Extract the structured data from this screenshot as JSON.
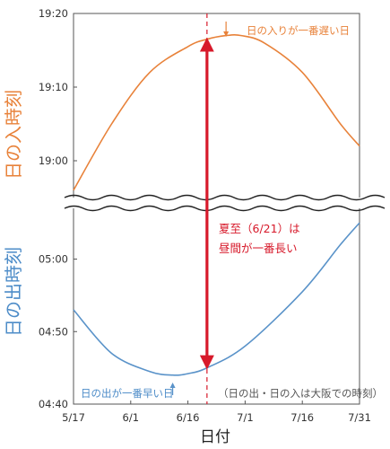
{
  "chart_data": {
    "type": "line",
    "xlabel": "日付",
    "x_ticks": [
      "5/17",
      "6/1",
      "6/16",
      "7/1",
      "7/16",
      "7/31"
    ],
    "y_upper_label": "日の入時刻",
    "y_lower_label": "日の出時刻",
    "y_upper_ticks": [
      "19:20",
      "19:10",
      "19:00"
    ],
    "y_lower_ticks": [
      "05:00",
      "04:50",
      "04:40"
    ],
    "y_upper_range": [
      "18:55",
      "19:20"
    ],
    "y_lower_range": [
      "04:40",
      "05:07"
    ],
    "axis_break": true,
    "series": [
      {
        "name": "日の入時刻",
        "axis": "upper",
        "color": "#e8823a",
        "x": [
          "5/17",
          "5/27",
          "6/6",
          "6/16",
          "6/21",
          "6/26",
          "6/30",
          "7/6",
          "7/16",
          "7/26",
          "7/31"
        ],
        "y": [
          "18:56",
          "19:05",
          "19:12",
          "19:15.5",
          "19:16.5",
          "19:17",
          "19:17",
          "19:16",
          "19:12",
          "19:05",
          "19:02"
        ]
      },
      {
        "name": "日の出時刻",
        "axis": "lower",
        "color": "#5a93c9",
        "x": [
          "5/17",
          "5/27",
          "6/6",
          "6/12",
          "6/16",
          "6/21",
          "7/1",
          "7/16",
          "7/26",
          "7/31"
        ],
        "y": [
          "04:53",
          "04:47",
          "04:44.5",
          "04:44",
          "04:44.2",
          "04:45",
          "04:48",
          "04:55.5",
          "05:02",
          "05:05"
        ]
      }
    ],
    "annotations": {
      "sunset_latest": "日の入りが一番遅い日",
      "sunrise_earliest": "日の出が一番早い日",
      "solstice_line1": "夏至（6/21）は",
      "solstice_line2": "昼間が一番長い",
      "source_note": "（日の出・日の入は大阪での時刻）"
    },
    "marker_date": "6/21",
    "colors": {
      "sunset": "#e8823a",
      "sunrise": "#5a93c9",
      "accent": "#d7192a",
      "frame": "#555555"
    }
  }
}
